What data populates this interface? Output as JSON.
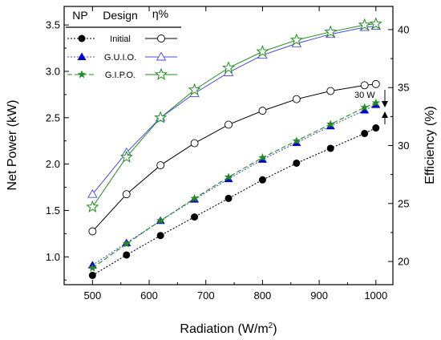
{
  "chart_data": {
    "type": "line",
    "x": [
      500,
      560,
      620,
      680,
      740,
      800,
      860,
      920,
      980,
      1000
    ],
    "xlabel": "Radiation (W/m",
    "xlabel_sup": "2",
    "xlabel_close": ")",
    "xlim": [
      450,
      1030
    ],
    "xticks": [
      "500",
      "600",
      "700",
      "800",
      "900",
      "1000"
    ],
    "ylabel_left": "Net Power (kW)",
    "ylim_left": [
      0.7,
      3.7
    ],
    "yticks_left": [
      "1.0",
      "1.5",
      "2.0",
      "2.5",
      "3.0",
      "3.5"
    ],
    "ylabel_right": "Efficiency (%)",
    "ylim_right": [
      18,
      42
    ],
    "yticks_right": [
      "20",
      "25",
      "30",
      "35",
      "40"
    ],
    "grid": false,
    "legend": {
      "placement": "top-left",
      "headers": [
        "NP",
        "Design",
        "η%"
      ],
      "entries": [
        "Initial",
        "G.U.I.O.",
        "G.I.P.O."
      ]
    },
    "annotation": "30 W",
    "colors": {
      "initial": "#000000",
      "guio": "#4a4ae0",
      "gipo": "#1e8c1e",
      "triangle_fill": "#0000cc"
    },
    "series": [
      {
        "name": "Initial",
        "metric": "NP",
        "axis": "left",
        "marker": "circle-filled",
        "line": "dotted",
        "values": [
          0.8,
          1.02,
          1.23,
          1.43,
          1.63,
          1.83,
          2.01,
          2.17,
          2.33,
          2.39
        ]
      },
      {
        "name": "G.U.I.O.",
        "metric": "NP",
        "axis": "left",
        "marker": "triangle-filled",
        "line": "dotted",
        "values": [
          0.91,
          1.15,
          1.39,
          1.62,
          1.84,
          2.05,
          2.23,
          2.41,
          2.58,
          2.64
        ]
      },
      {
        "name": "G.I.P.O.",
        "metric": "NP",
        "axis": "left",
        "marker": "star-filled",
        "line": "dashed",
        "values": [
          0.88,
          1.14,
          1.39,
          1.63,
          1.86,
          2.07,
          2.25,
          2.43,
          2.61,
          2.66
        ]
      },
      {
        "name": "Initial",
        "metric": "η%",
        "axis": "right",
        "marker": "circle-open",
        "line": "solid",
        "values": [
          22.6,
          25.8,
          28.3,
          30.2,
          31.8,
          33.0,
          34.0,
          34.7,
          35.2,
          35.3
        ]
      },
      {
        "name": "G.U.I.O.",
        "metric": "η%",
        "axis": "right",
        "marker": "triangle-open",
        "line": "solid",
        "values": [
          25.8,
          29.4,
          32.4,
          34.5,
          36.3,
          37.8,
          38.8,
          39.6,
          40.2,
          40.3
        ]
      },
      {
        "name": "G.I.P.O.",
        "metric": "η%",
        "axis": "right",
        "marker": "star-open",
        "line": "solid",
        "values": [
          24.7,
          29.0,
          32.4,
          34.8,
          36.7,
          38.1,
          39.1,
          39.8,
          40.4,
          40.5
        ]
      }
    ]
  }
}
